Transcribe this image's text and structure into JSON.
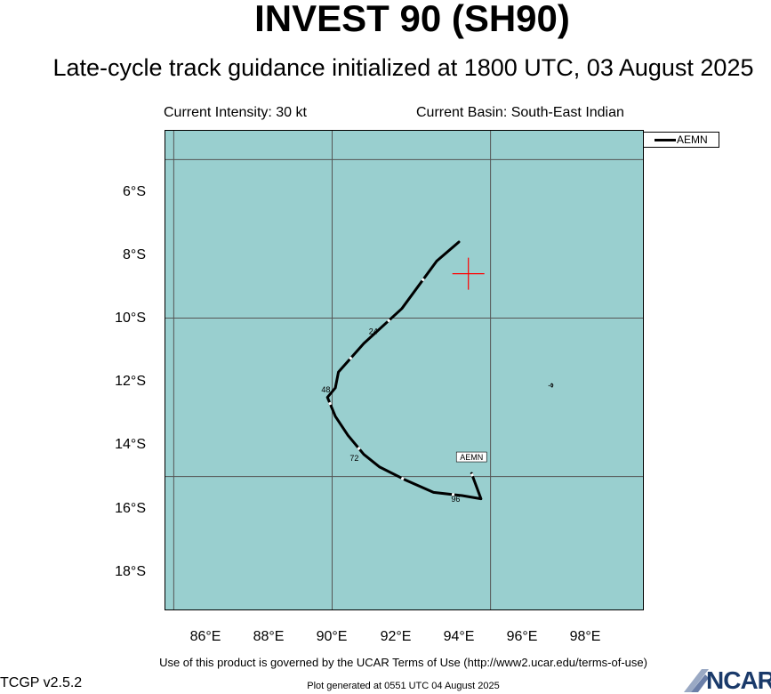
{
  "header": {
    "title": "INVEST 90 (SH90)",
    "subtitle": "Late-cycle track guidance initialized at 1800 UTC, 03 August 2025"
  },
  "info": {
    "intensity": "Current Intensity: 30 kt",
    "basin": "Current Basin: South-East Indian"
  },
  "map": {
    "lat_labels": [
      "6°S",
      "8°S",
      "10°S",
      "12°S",
      "14°S",
      "16°S",
      "18°S"
    ],
    "lon_labels": [
      "86°E",
      "88°E",
      "90°E",
      "92°E",
      "94°E",
      "96°E",
      "98°E"
    ],
    "ocean_color": "#99cfcf",
    "current_position": {
      "lon": 94.3,
      "lat": -8.6,
      "marker": "red-cross",
      "color": "#ff0000"
    },
    "track_color": "#000000",
    "tracks": [
      {
        "name": "AEMN",
        "points": [
          {
            "lon": 94.0,
            "lat": -7.6
          },
          {
            "lon": 93.3,
            "lat": -8.2
          },
          {
            "lon": 92.2,
            "lat": -9.7
          },
          {
            "lon": 91.0,
            "lat": -10.8
          },
          {
            "lon": 90.2,
            "lat": -11.7
          },
          {
            "lon": 90.1,
            "lat": -12.2
          },
          {
            "lon": 89.85,
            "lat": -12.5
          },
          {
            "lon": 90.1,
            "lat": -13.1
          },
          {
            "lon": 90.5,
            "lat": -13.7
          },
          {
            "lon": 91.0,
            "lat": -14.3
          },
          {
            "lon": 91.5,
            "lat": -14.7
          },
          {
            "lon": 92.3,
            "lat": -15.1
          },
          {
            "lon": 93.2,
            "lat": -15.5
          },
          {
            "lon": 94.1,
            "lat": -15.6
          },
          {
            "lon": 94.7,
            "lat": -15.7
          },
          {
            "lon": 94.4,
            "lat": -14.9
          }
        ],
        "hour_labels": [
          {
            "text": "24",
            "lon": 91.3,
            "lat": -10.5
          },
          {
            "text": "48",
            "lon": 89.8,
            "lat": -12.35
          },
          {
            "text": "72",
            "lon": 90.7,
            "lat": -14.5
          },
          {
            "text": "96",
            "lon": 93.9,
            "lat": -15.8
          }
        ],
        "end_tag": "AEMN"
      }
    ]
  },
  "legend": {
    "items": [
      "AEMN"
    ]
  },
  "footer": {
    "terms": "Use of this product is governed by the UCAR Terms of Use (http://www2.ucar.edu/terms-of-use)",
    "version": "TCGP v2.5.2",
    "generated": "Plot generated at 0551 UTC   04 August 2025",
    "logo": "NCAR"
  }
}
